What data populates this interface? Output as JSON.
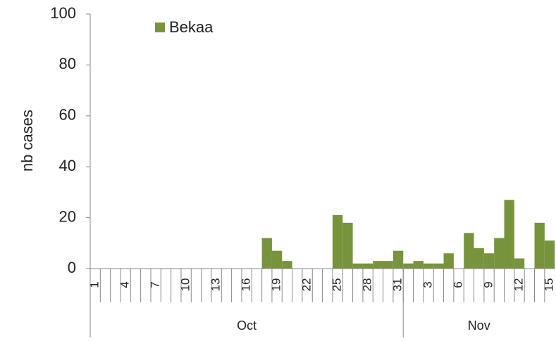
{
  "chart_data": {
    "type": "bar",
    "y_label": "nb cases",
    "categories": [
      1,
      null,
      null,
      4,
      null,
      null,
      7,
      null,
      null,
      10,
      null,
      null,
      13,
      null,
      null,
      16,
      null,
      null,
      19,
      null,
      null,
      22,
      null,
      null,
      25,
      null,
      null,
      28,
      null,
      null,
      31,
      null,
      null,
      3,
      null,
      null,
      6,
      null,
      null,
      9,
      null,
      null,
      12,
      null,
      null,
      15
    ],
    "x_groups": [
      "Oct",
      "Nov"
    ],
    "series": [
      {
        "name": "Bekaa",
        "color": "#77933c",
        "values": [
          0,
          0,
          0,
          0,
          0,
          0,
          0,
          0,
          0,
          0,
          0,
          0,
          0,
          0,
          0,
          0,
          0,
          12,
          7,
          3,
          0,
          0,
          0,
          0,
          21,
          18,
          2,
          2,
          3,
          3,
          7,
          2,
          3,
          2,
          2,
          6,
          0,
          14,
          8,
          6,
          12,
          27,
          4,
          0,
          18,
          11
        ]
      }
    ],
    "ylim": [
      0,
      100
    ],
    "yticks": [
      0,
      20,
      40,
      60,
      80,
      100
    ],
    "legend": "top-left"
  }
}
